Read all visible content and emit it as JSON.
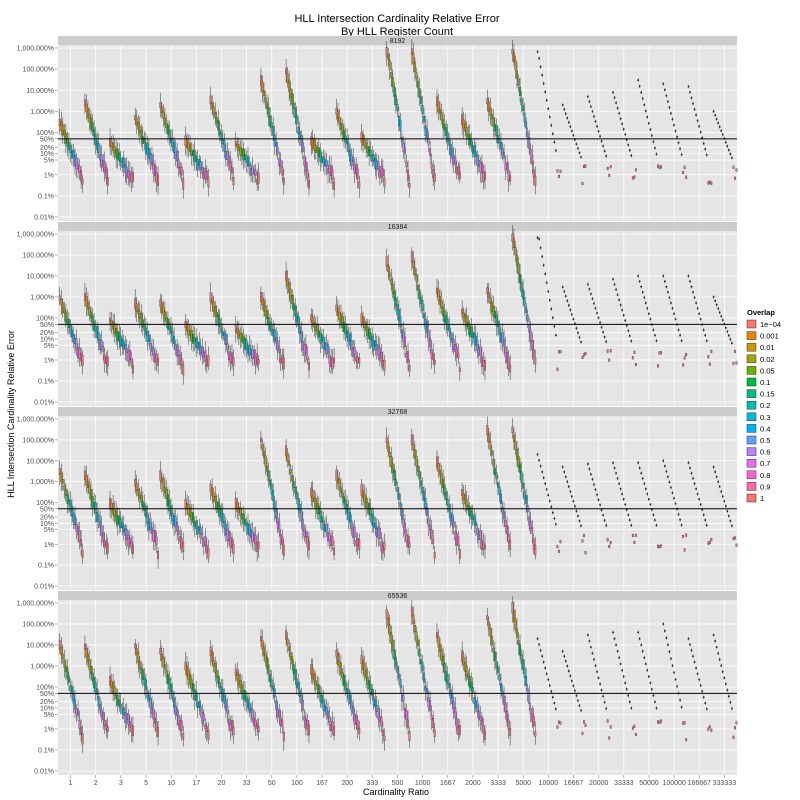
{
  "chart_data": {
    "type": "boxplot",
    "title": "HLL Intersection Cardinality Relative Error",
    "subtitle": "By HLL Register Count",
    "xlabel": "Cardinality Ratio",
    "ylabel": "HLL Intersection Cardinality Relative Error",
    "y_scale": "log",
    "ylim_percent": [
      0.01,
      1000000
    ],
    "reference_line_percent": 50,
    "grid": true,
    "legend_placement": "right",
    "facet_labels": [
      "8192",
      "16384",
      "32768",
      "65536"
    ],
    "categories": [
      "1",
      "2",
      "3",
      "5",
      "10",
      "17",
      "20",
      "33",
      "50",
      "100",
      "167",
      "200",
      "333",
      "500",
      "1000",
      "1667",
      "2000",
      "3333",
      "5000",
      "10000",
      "16667",
      "20000",
      "33333",
      "50000",
      "100000",
      "166667",
      "333333"
    ],
    "y_ticks": [
      {
        "label": "0.01%",
        "value": 0.01
      },
      {
        "label": "0.1%",
        "value": 0.1
      },
      {
        "label": "1%",
        "value": 1
      },
      {
        "label": "5%",
        "value": 5
      },
      {
        "label": "10%",
        "value": 10
      },
      {
        "label": "20%",
        "value": 20
      },
      {
        "label": "50%",
        "value": 50
      },
      {
        "label": "100%",
        "value": 100
      },
      {
        "label": "1,000%",
        "value": 1000
      },
      {
        "label": "10,000%",
        "value": 10000
      },
      {
        "label": "100,000%",
        "value": 100000
      },
      {
        "label": "1,000,000%",
        "value": 1000000
      }
    ],
    "legend": {
      "title": "Overlap",
      "items": [
        {
          "label": "1e−04",
          "color": "#F8766D"
        },
        {
          "label": "0.001",
          "color": "#E58700"
        },
        {
          "label": "0.01",
          "color": "#C99800"
        },
        {
          "label": "0.02",
          "color": "#A3A500"
        },
        {
          "label": "0.05",
          "color": "#6BB100"
        },
        {
          "label": "0.1",
          "color": "#00BA38"
        },
        {
          "label": "0.15",
          "color": "#00BF7D"
        },
        {
          "label": "0.2",
          "color": "#00C0AF"
        },
        {
          "label": "0.3",
          "color": "#00BCD8"
        },
        {
          "label": "0.4",
          "color": "#00B0F6"
        },
        {
          "label": "0.5",
          "color": "#619CFF"
        },
        {
          "label": "0.6",
          "color": "#B983FF"
        },
        {
          "label": "0.7",
          "color": "#E76BF3"
        },
        {
          "label": "0.8",
          "color": "#FD61D1"
        },
        {
          "label": "0.9",
          "color": "#FF67A4"
        },
        {
          "label": "1",
          "color": "#F8766D"
        }
      ]
    },
    "series": [
      {
        "name": "8192",
        "medians_top_percent": [
          300,
          2500,
          35,
          500,
          2000,
          40,
          3500,
          30,
          30000,
          80000,
          40,
          1000,
          60,
          1000000,
          800000,
          3000,
          400,
          3000,
          1000000,
          800000,
          2000,
          5000,
          8000,
          30000,
          20000,
          15000,
          1000
        ]
      },
      {
        "name": "16384",
        "medians_top_percent": [
          900,
          1000,
          80,
          500,
          500,
          50,
          1000,
          30,
          1000,
          10000,
          100,
          300,
          100,
          50000,
          80000,
          2000,
          200,
          2000,
          1000000,
          1500000,
          3000,
          4000,
          7000,
          10000,
          10000,
          10000,
          1000
        ]
      },
      {
        "name": "32768",
        "medians_top_percent": [
          3000,
          2000,
          90,
          900,
          2000,
          90,
          500,
          90,
          100000,
          30000,
          300,
          2000,
          400,
          100000,
          100000,
          9000,
          300,
          300000,
          300000,
          20000,
          5000,
          7000,
          8000,
          8000,
          10000,
          8000,
          5000
        ]
      },
      {
        "name": "65536",
        "medians_top_percent": [
          10000,
          8000,
          200,
          9000,
          5000,
          1000,
          5000,
          500,
          20000,
          30000,
          700,
          4000,
          2000,
          300000,
          400000,
          30000,
          3000,
          200000,
          600000,
          20000,
          5000,
          30000,
          40000,
          40000,
          100000,
          20000,
          30000
        ]
      }
    ]
  }
}
